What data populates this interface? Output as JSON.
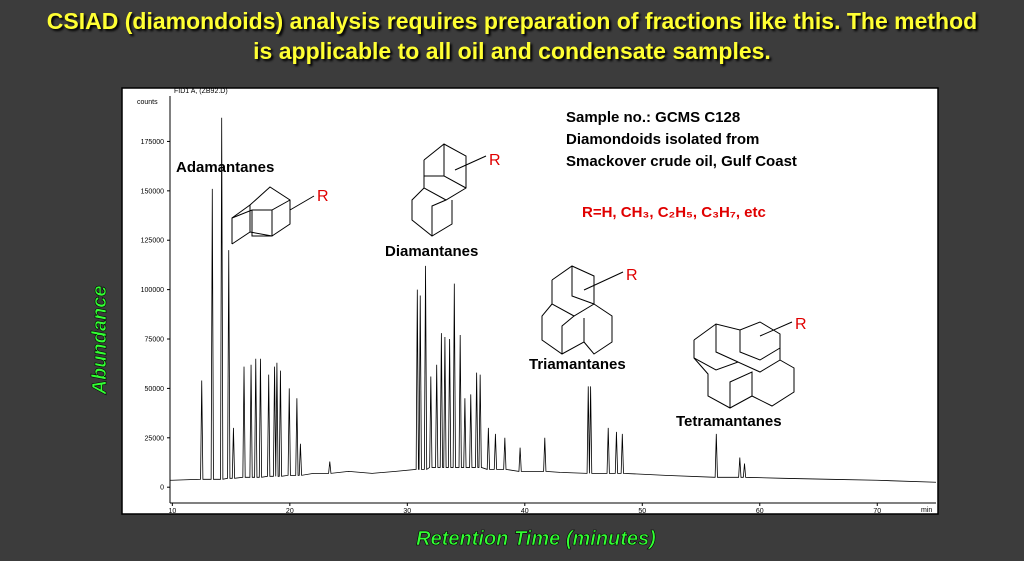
{
  "chart_data": {
    "type": "line",
    "title": "CSIAD (diamondoids) analysis requires preparation of fractions like this.  The method is applicable to all oil and condensate samples.",
    "instrument_label": "FID1 A,  (ZB92.D)",
    "y_unit_label": "counts",
    "x_unit_label": "min",
    "xlabel": "Retention Time (minutes)",
    "ylabel": "Abundance",
    "sample_info": [
      "Sample no.: GCMS C128",
      "Diamondoids isolated from",
      "Smackover crude oil, Gulf Coast"
    ],
    "substituents": "R=H, CH₃, C₂H₅, C₃H₇, etc",
    "compound_labels": [
      "Adamantanes",
      "Diamantanes",
      "Triamantanes",
      "Tetramantanes"
    ],
    "substituent_labels": [
      "R",
      "R",
      "R",
      "R"
    ],
    "xlim": [
      9.8,
      75
    ],
    "xticks": [
      10,
      20,
      30,
      40,
      50,
      60,
      70
    ],
    "ylim": [
      -8000,
      198000
    ],
    "yticks": [
      0,
      25000,
      50000,
      75000,
      100000,
      125000,
      150000,
      175000
    ],
    "series": [
      {
        "color": "#000000",
        "x": [
          9.8,
          10,
          12.4,
          12.5,
          12.6,
          13.3,
          13.4,
          13.5,
          14.1,
          14.2,
          14.3,
          14.7,
          14.8,
          14.9,
          15.1,
          15.2,
          15.3,
          16.0,
          16.1,
          16.2,
          16.6,
          16.7,
          16.8,
          17.0,
          17.1,
          17.2,
          17.4,
          17.5,
          17.6,
          18.1,
          18.2,
          18.3,
          18.6,
          18.7,
          18.8,
          18.9,
          19.0,
          19.1,
          19.2,
          19.3,
          19.85,
          19.95,
          20.05,
          20.5,
          20.6,
          20.7,
          20.8,
          20.9,
          21.0,
          22,
          23.3,
          23.4,
          23.5,
          25,
          27,
          29,
          30.75,
          30.85,
          30.95,
          31.0,
          31.1,
          31.2,
          31.45,
          31.55,
          31.65,
          31.9,
          32.0,
          32.1,
          32.4,
          32.5,
          32.6,
          32.8,
          32.9,
          33.0,
          33.1,
          33.2,
          33.3,
          33.5,
          33.6,
          33.7,
          33.9,
          34.0,
          34.1,
          34.4,
          34.5,
          34.6,
          34.8,
          34.9,
          35.0,
          35.3,
          35.4,
          35.5,
          35.8,
          35.9,
          36.0,
          36.1,
          36.2,
          36.3,
          36.8,
          36.9,
          37.0,
          37.4,
          37.5,
          37.6,
          38.2,
          38.3,
          38.4,
          39.5,
          39.6,
          39.7,
          41.6,
          41.7,
          41.8,
          43,
          45.3,
          45.4,
          45.5,
          45.6,
          45.7,
          47.0,
          47.1,
          47.2,
          47.7,
          47.8,
          47.9,
          48.2,
          48.3,
          48.4,
          52,
          56.2,
          56.3,
          56.4,
          58.2,
          58.3,
          58.4,
          58.6,
          58.7,
          58.8,
          62,
          66,
          70,
          75
        ],
        "values": [
          3500,
          3500,
          4000,
          54000,
          4000,
          4000,
          151000,
          4000,
          4000,
          187000,
          4000,
          4500,
          120000,
          4500,
          4500,
          30000,
          4500,
          5000,
          61000,
          5000,
          5000,
          62000,
          5000,
          5000,
          65000,
          5000,
          5000,
          65000,
          5000,
          5500,
          57000,
          5500,
          5500,
          61000,
          5500,
          63000,
          5500,
          5500,
          59000,
          5500,
          6000,
          50000,
          6000,
          6000,
          45000,
          6000,
          6000,
          22000,
          6000,
          7000,
          7000,
          13000,
          7000,
          8000,
          7000,
          8000,
          9000,
          100000,
          9000,
          9000,
          97000,
          9000,
          9000,
          112000,
          9000,
          10000,
          56000,
          10000,
          10000,
          62000,
          10000,
          10000,
          78000,
          10000,
          10000,
          76000,
          10000,
          10000,
          75000,
          10000,
          10000,
          103000,
          10000,
          10000,
          77000,
          10000,
          10000,
          45000,
          10000,
          10000,
          47000,
          10000,
          10000,
          58000,
          10000,
          10000,
          57000,
          10000,
          9000,
          30000,
          9000,
          9000,
          27000,
          9000,
          9000,
          25000,
          9000,
          8000,
          20000,
          8000,
          8000,
          25000,
          8000,
          7500,
          7000,
          51000,
          7000,
          51000,
          7000,
          7000,
          30000,
          7000,
          7000,
          28000,
          7000,
          7000,
          27000,
          7000,
          6000,
          5000,
          27000,
          5000,
          5000,
          15000,
          5000,
          5000,
          12000,
          5000,
          4500,
          4000,
          3500,
          2500
        ]
      }
    ]
  }
}
